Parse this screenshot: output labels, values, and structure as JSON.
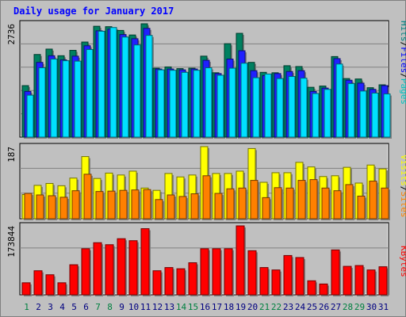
{
  "title": "Daily usage for January 2017",
  "chart_data": [
    {
      "type": "bar",
      "panel": "hits",
      "categories": [
        "1",
        "2",
        "3",
        "4",
        "5",
        "6",
        "7",
        "8",
        "9",
        "10",
        "11",
        "12",
        "13",
        "14",
        "15",
        "16",
        "17",
        "18",
        "19",
        "20",
        "21",
        "22",
        "23",
        "24",
        "25",
        "26",
        "27",
        "28",
        "29",
        "30",
        "31"
      ],
      "y_max_label": "2736",
      "legend": [
        {
          "label": "Pages",
          "color": "#00c0c0"
        },
        {
          "label": "Files",
          "color": "#0000ff"
        },
        {
          "label": "Hits",
          "color": "#008080"
        }
      ],
      "series": [
        {
          "name": "Hits",
          "color": "#008060",
          "values": [
            1240,
            1990,
            2120,
            1960,
            2090,
            2290,
            2670,
            2660,
            2570,
            2460,
            2730,
            1660,
            1690,
            1650,
            1660,
            1950,
            1550,
            2250,
            2500,
            1800,
            1560,
            1550,
            1720,
            1700,
            1200,
            1230,
            1940,
            1410,
            1400,
            1190,
            1260
          ]
        },
        {
          "name": "Files",
          "color": "#2020ff",
          "values": [
            1100,
            1800,
            1960,
            1860,
            1950,
            2200,
            2560,
            2600,
            2470,
            2370,
            2620,
            1640,
            1640,
            1620,
            1640,
            1850,
            1530,
            1880,
            2080,
            1600,
            1480,
            1530,
            1580,
            1600,
            1100,
            1180,
            1890,
            1370,
            1300,
            1150,
            1240
          ]
        },
        {
          "name": "Pages",
          "color": "#00e0ff",
          "values": [
            1010,
            1670,
            1880,
            1840,
            1830,
            2110,
            2550,
            2640,
            2410,
            2220,
            2450,
            1620,
            1610,
            1560,
            1610,
            1670,
            1490,
            1660,
            1780,
            1430,
            1520,
            1410,
            1460,
            1420,
            1050,
            1150,
            1760,
            1290,
            1110,
            1060,
            1040
          ]
        }
      ]
    },
    {
      "type": "bar",
      "panel": "visits",
      "y_max_label": "187",
      "legend": [
        {
          "label": "Sites",
          "color": "#ff8000"
        },
        {
          "label": "Visits",
          "color": "#ffff00"
        }
      ],
      "series": [
        {
          "name": "Visits",
          "color": "#ffff00",
          "values": [
            63,
            87,
            92,
            86,
            106,
            162,
            105,
            119,
            114,
            124,
            80,
            74,
            118,
            109,
            114,
            188,
            118,
            118,
            124,
            183,
            95,
            120,
            120,
            147,
            135,
            110,
            112,
            134,
            93,
            140,
            130
          ]
        },
        {
          "name": "Sites",
          "color": "#ff8000",
          "values": [
            66,
            62,
            60,
            56,
            73,
            116,
            71,
            72,
            74,
            75,
            76,
            50,
            62,
            58,
            65,
            112,
            66,
            78,
            80,
            100,
            55,
            81,
            80,
            100,
            102,
            80,
            73,
            89,
            59,
            98,
            80
          ]
        }
      ]
    },
    {
      "type": "bar",
      "panel": "kbytes",
      "y_max_label": "173844",
      "legend": [
        {
          "label": "KBytes",
          "color": "#ff0000"
        }
      ],
      "series": [
        {
          "name": "KBytes",
          "color": "#ff0000",
          "values": [
            30000,
            60000,
            50000,
            30000,
            75000,
            115000,
            130000,
            125000,
            140000,
            135000,
            165000,
            60000,
            68000,
            65000,
            80000,
            115000,
            115000,
            115000,
            172000,
            110000,
            68000,
            62000,
            98000,
            93000,
            35000,
            27000,
            112000,
            71000,
            73000,
            62000,
            70000
          ]
        }
      ]
    }
  ],
  "axis_colors": {
    "odd": "#008040",
    "default": "#000080"
  }
}
